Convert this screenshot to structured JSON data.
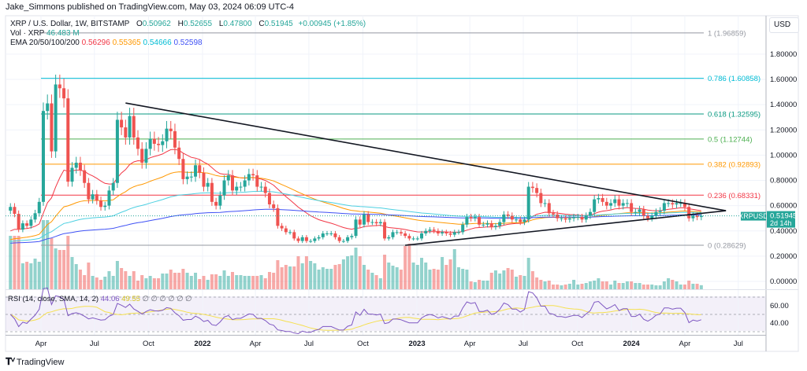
{
  "header": {
    "published": "Jake_Simmons published on TradingView.com, May 03, 2024 06:09 UTC-4"
  },
  "legend": {
    "symbol": "XRP / U.S. Dollar, 1W, BITSTAMP",
    "o_label": "O",
    "o": "0.50962",
    "h_label": "H",
    "h": "0.52655",
    "l_label": "L",
    "l": "0.47800",
    "c_label": "C",
    "c": "0.51945",
    "change": "+0.00945 (+1.85%)",
    "vol_label": "Vol · XRP",
    "vol": "46.483 M",
    "ema_label": "EMA 20/50/100/200",
    "ema_values": [
      "0.56296",
      "0.55365",
      "0.54666",
      "0.52598"
    ]
  },
  "currency_button": "USD",
  "rsi": {
    "label": "RSI (14, close, SMA, 14, 2)",
    "value": "44.06",
    "sma": "49.55",
    "extras": "∅ ∅ ∅ ∅ ∅ ∅",
    "ticks": [
      "60.00",
      "40.00"
    ]
  },
  "price_badge": {
    "symbol": "XRPUSD",
    "price": "0.51945",
    "countdown": "2d 14h"
  },
  "footer": {
    "brand": "TradingView",
    "logo_icon": "tradingview-logo-icon"
  },
  "colors": {
    "up": "#26a69a",
    "down": "#ef5350",
    "ema": [
      "#f23645",
      "#ff9800",
      "#4dd0e1",
      "#3f51f5"
    ],
    "rsi": "#7e57c2",
    "rsi_sma": "#f5e050"
  },
  "chart_data": {
    "type": "candlestick",
    "interval": "1W",
    "first_week": "2021-02-08",
    "y_axis_ticks": [
      "1.80000",
      "1.60000",
      "1.40000",
      "1.20000",
      "1.00000",
      "0.80000",
      "0.60000",
      "0.40000",
      "0.20000",
      "0.00000"
    ],
    "ylim": [
      0,
      1.98
    ],
    "x_ticks": [
      {
        "label": "Apr",
        "date": "2021-04-01"
      },
      {
        "label": "Jul",
        "date": "2021-07-01"
      },
      {
        "label": "Oct",
        "date": "2021-10-01"
      },
      {
        "label": "2022",
        "date": "2022-01-01"
      },
      {
        "label": "Apr",
        "date": "2022-04-01"
      },
      {
        "label": "Jul",
        "date": "2022-07-01"
      },
      {
        "label": "Oct",
        "date": "2022-10-01"
      },
      {
        "label": "2023",
        "date": "2023-01-01"
      },
      {
        "label": "Apr",
        "date": "2023-04-01"
      },
      {
        "label": "Jul",
        "date": "2023-07-01"
      },
      {
        "label": "Oct",
        "date": "2023-10-01"
      },
      {
        "label": "2024",
        "date": "2024-01-01"
      },
      {
        "label": "Apr",
        "date": "2024-04-01"
      },
      {
        "label": "Jul",
        "date": "2024-07-01"
      }
    ],
    "closes": [
      0.59,
      0.535,
      0.41,
      0.46,
      0.44,
      0.49,
      0.54,
      0.63,
      1.35,
      1.41,
      1.03,
      1.56,
      1.53,
      1.45,
      0.79,
      0.9,
      0.94,
      0.88,
      0.78,
      0.65,
      0.69,
      0.64,
      0.59,
      0.6,
      0.72,
      0.78,
      1.28,
      1.22,
      1.14,
      1.31,
      1.14,
      1.05,
      0.94,
      1.05,
      1.13,
      1.09,
      1.08,
      1.11,
      1.21,
      1.19,
      1.06,
      0.97,
      0.81,
      0.83,
      0.83,
      0.92,
      0.86,
      0.75,
      0.78,
      0.63,
      0.6,
      0.68,
      0.8,
      0.84,
      0.72,
      0.75,
      0.75,
      0.8,
      0.85,
      0.84,
      0.75,
      0.75,
      0.7,
      0.61,
      0.58,
      0.44,
      0.42,
      0.39,
      0.39,
      0.34,
      0.32,
      0.35,
      0.32,
      0.32,
      0.34,
      0.35,
      0.38,
      0.38,
      0.38,
      0.35,
      0.32,
      0.32,
      0.35,
      0.36,
      0.49,
      0.45,
      0.53,
      0.47,
      0.47,
      0.46,
      0.47,
      0.34,
      0.35,
      0.39,
      0.39,
      0.38,
      0.36,
      0.34,
      0.34,
      0.34,
      0.38,
      0.4,
      0.41,
      0.4,
      0.38,
      0.39,
      0.38,
      0.37,
      0.39,
      0.39,
      0.45,
      0.51,
      0.5,
      0.51,
      0.45,
      0.45,
      0.46,
      0.43,
      0.44,
      0.47,
      0.53,
      0.52,
      0.49,
      0.49,
      0.47,
      0.49,
      0.75,
      0.74,
      0.7,
      0.62,
      0.62,
      0.54,
      0.53,
      0.5,
      0.5,
      0.49,
      0.5,
      0.51,
      0.51,
      0.49,
      0.52,
      0.55,
      0.65,
      0.66,
      0.63,
      0.6,
      0.62,
      0.65,
      0.6,
      0.62,
      0.62,
      0.55,
      0.55,
      0.57,
      0.52,
      0.5,
      0.52,
      0.55,
      0.56,
      0.62,
      0.62,
      0.61,
      0.62,
      0.62,
      0.59,
      0.5,
      0.52,
      0.51,
      0.51945
    ],
    "volumes_m": [
      612,
      612,
      612,
      297,
      315,
      297,
      351,
      315,
      792,
      792,
      585,
      468,
      450,
      450,
      612,
      369,
      288,
      225,
      162,
      306,
      153,
      135,
      108,
      144,
      207,
      153,
      324,
      243,
      207,
      153,
      207,
      99,
      162,
      126,
      153,
      126,
      126,
      180,
      180,
      225,
      189,
      189,
      234,
      189,
      153,
      189,
      117,
      153,
      108,
      171,
      171,
      153,
      216,
      153,
      198,
      162,
      162,
      153,
      153,
      153,
      153,
      162,
      126,
      198,
      189,
      333,
      252,
      279,
      261,
      261,
      378,
      297,
      378,
      324,
      297,
      225,
      252,
      234,
      234,
      279,
      288,
      342,
      378,
      387,
      477,
      378,
      279,
      225,
      189,
      162,
      126,
      396,
      306,
      270,
      252,
      225,
      495,
      522,
      306,
      279,
      360,
      306,
      225,
      234,
      225,
      369,
      279,
      342,
      459,
      252,
      234,
      225,
      90,
      81,
      108,
      99,
      99,
      189,
      216,
      180,
      216,
      243,
      225,
      144,
      162,
      153,
      360,
      207,
      135,
      108,
      90,
      99,
      54,
      54,
      45,
      54,
      63,
      108,
      54,
      63,
      72,
      90,
      99,
      126,
      90,
      90,
      54,
      99,
      72,
      72,
      90,
      90,
      72,
      72,
      54,
      54,
      54,
      45,
      45,
      90,
      126,
      108,
      90,
      54,
      54,
      99,
      63,
      63,
      46.483
    ],
    "fib_levels": [
      {
        "label": "1 (1.96859)",
        "price": 1.96859,
        "color": "#9598a1"
      },
      {
        "label": "0.786 (1.60858)",
        "price": 1.60858,
        "color": "#00bcd4"
      },
      {
        "label": "0.618 (1.32595)",
        "price": 1.32595,
        "color": "#089981"
      },
      {
        "label": "0.5 (1.12744)",
        "price": 1.12744,
        "color": "#4caf50"
      },
      {
        "label": "0.382 (0.92893)",
        "price": 0.92893,
        "color": "#ff9800"
      },
      {
        "label": "0.236 (0.68331)",
        "price": 0.68331,
        "color": "#f23645"
      },
      {
        "label": "0 (0.28629)",
        "price": 0.28629,
        "color": "#9598a1"
      }
    ],
    "trendlines": [
      {
        "from": {
          "date": "2021-08-23",
          "price": 1.413
        },
        "to": {
          "date": "2024-06-10",
          "price": 0.56
        }
      },
      {
        "from": {
          "date": "2022-12-12",
          "price": 0.286
        },
        "to": {
          "date": "2024-06-10",
          "price": 0.56
        }
      }
    ],
    "rsi_levels": [
      70,
      50,
      30
    ]
  }
}
